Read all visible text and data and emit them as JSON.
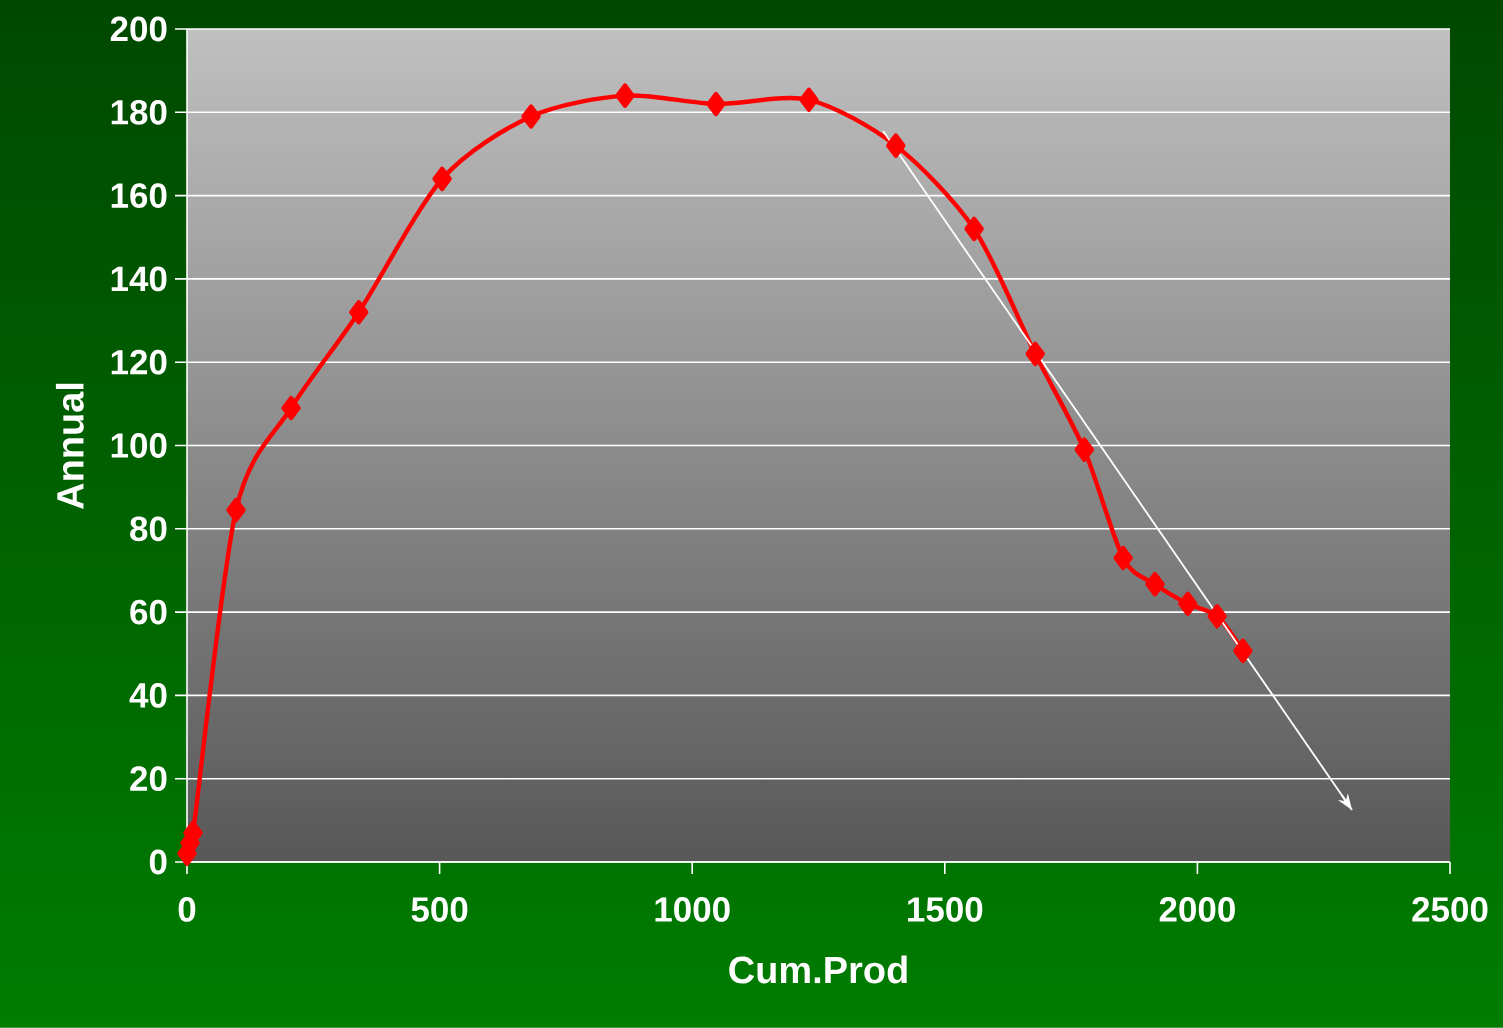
{
  "chart_data": {
    "type": "line",
    "xlabel": "Cum.Prod",
    "ylabel": "Annual",
    "xlim": [
      0,
      2500
    ],
    "ylim": [
      0,
      200
    ],
    "xticks": [
      0,
      500,
      1000,
      1500,
      2000,
      2500
    ],
    "yticks": [
      0,
      20,
      40,
      60,
      80,
      100,
      120,
      140,
      160,
      180,
      200
    ],
    "grid": "y",
    "marker": "diamond",
    "line_style": "solid",
    "series": [
      {
        "color": "#ff0000",
        "x": [
          0,
          6,
          12,
          97,
          206,
          340,
          505,
          681,
          867,
          1047,
          1231,
          1403,
          1558,
          1679,
          1776,
          1853,
          1916,
          1981,
          2039,
          2090
        ],
        "values": [
          2,
          4.6,
          7,
          84.5,
          109,
          132,
          164,
          179,
          184,
          182,
          183,
          172,
          152,
          122,
          99,
          73,
          66.7,
          62,
          59,
          50.7
        ]
      },
      {
        "type": "line",
        "color": "#ffffff",
        "marker": "none",
        "x": [
          1378,
          2306
        ],
        "values": [
          175.5,
          12.5
        ]
      }
    ]
  }
}
